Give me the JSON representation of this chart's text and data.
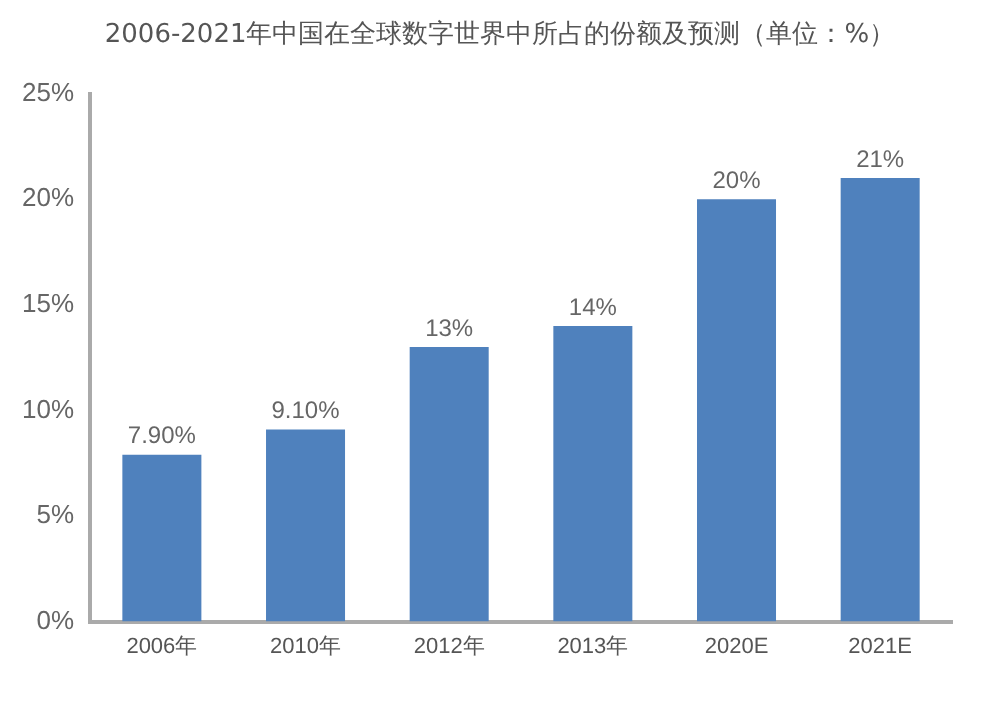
{
  "chart_data": {
    "type": "bar",
    "title": "2006-2021年中国在全球数字世界中所占的份额及预测（单位：%）",
    "categories": [
      "2006年",
      "2010年",
      "2012年",
      "2013年",
      "2020E",
      "2021E"
    ],
    "values": [
      7.9,
      9.1,
      13,
      14,
      20,
      21
    ],
    "value_labels": [
      "7.90%",
      "9.10%",
      "13%",
      "14%",
      "20%",
      "21%"
    ],
    "color": "#4f81bd",
    "ylim": [
      0,
      25
    ],
    "yticks": [
      {
        "value": 0,
        "label": "0%"
      },
      {
        "value": 5,
        "label": "5%"
      },
      {
        "value": 10,
        "label": "10%"
      },
      {
        "value": 15,
        "label": "15%"
      },
      {
        "value": 20,
        "label": "20%"
      },
      {
        "value": 25,
        "label": "25%"
      }
    ],
    "grid": false
  }
}
